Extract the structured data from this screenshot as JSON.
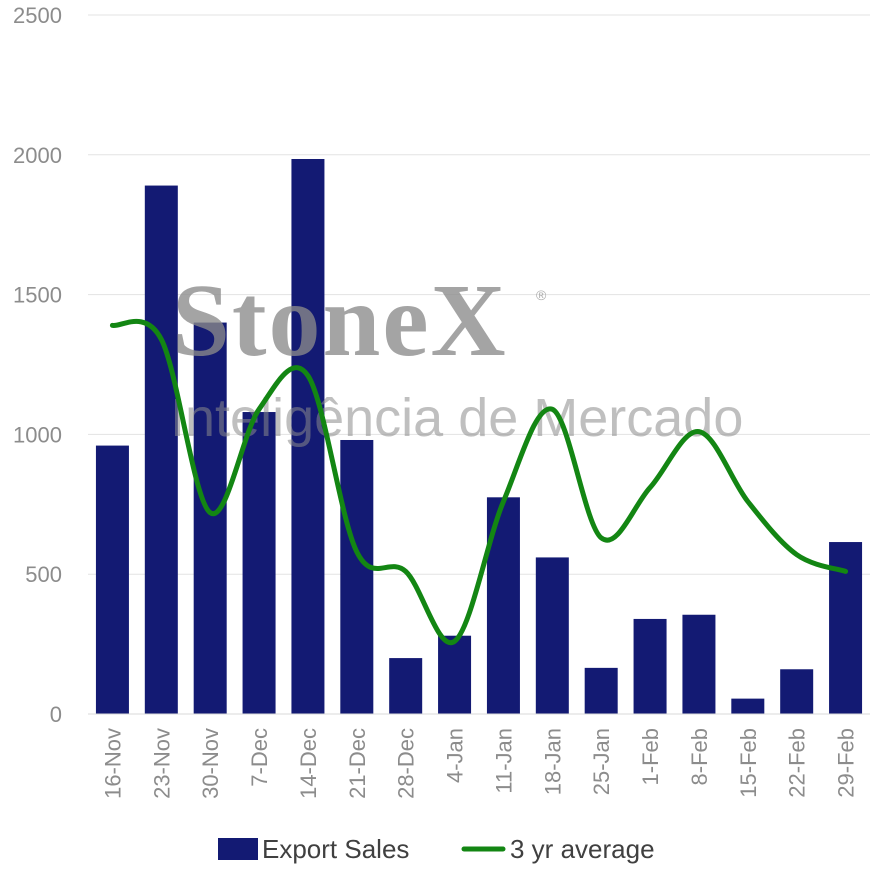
{
  "chart_data": {
    "type": "bar",
    "categories": [
      "16-Nov",
      "23-Nov",
      "30-Nov",
      "7-Dec",
      "14-Dec",
      "21-Dec",
      "28-Dec",
      "4-Jan",
      "11-Jan",
      "18-Jan",
      "25-Jan",
      "1-Feb",
      "8-Feb",
      "15-Feb",
      "22-Feb",
      "29-Feb"
    ],
    "series": [
      {
        "name": "Export Sales",
        "kind": "bar",
        "color": "#131a73",
        "values": [
          960,
          1890,
          1400,
          1080,
          1985,
          980,
          200,
          280,
          775,
          560,
          165,
          340,
          355,
          55,
          160,
          615
        ]
      },
      {
        "name": "3 yr average",
        "kind": "line",
        "color": "#138613",
        "values": [
          1390,
          1340,
          720,
          1090,
          1210,
          580,
          510,
          260,
          760,
          1090,
          630,
          810,
          1010,
          760,
          570,
          510
        ]
      }
    ],
    "ylim": [
      0,
      2500
    ],
    "yticks": [
      0,
      500,
      1000,
      1500,
      2000,
      2500
    ],
    "grid": true,
    "legend_position": "bottom-center",
    "watermark": {
      "line1": "StoneX",
      "line2": "Inteligência de Mercado",
      "mark": "®"
    }
  }
}
